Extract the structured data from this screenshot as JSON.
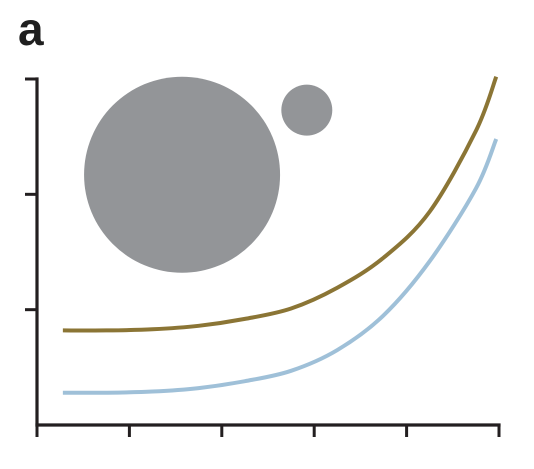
{
  "panel_label": "a",
  "chart_data": {
    "type": "line",
    "title": "",
    "xlabel": "",
    "ylabel": "",
    "xlim": [
      0,
      5
    ],
    "ylim": [
      0,
      3
    ],
    "x_ticks": [
      0,
      1,
      2,
      3,
      4,
      5
    ],
    "y_ticks": [
      0,
      1,
      2,
      3
    ],
    "tick_labels_shown": false,
    "grid": false,
    "legend": "none",
    "series": [
      {
        "color": "#8b7535",
        "x": [
          0.28,
          0.75,
          1.25,
          1.75,
          2.25,
          2.75,
          3.25,
          3.75,
          4.25,
          4.75,
          4.97
        ],
        "y": [
          0.82,
          0.82,
          0.83,
          0.86,
          0.92,
          1.01,
          1.19,
          1.45,
          1.85,
          2.55,
          3.02
        ]
      },
      {
        "color": "#9fc0d8",
        "x": [
          0.28,
          0.75,
          1.25,
          1.75,
          2.25,
          2.75,
          3.25,
          3.75,
          4.25,
          4.75,
          4.97
        ],
        "y": [
          0.28,
          0.28,
          0.29,
          0.32,
          0.38,
          0.47,
          0.65,
          0.95,
          1.42,
          2.05,
          2.48
        ]
      }
    ],
    "annotations": {
      "circles": [
        {
          "name": "large-circle",
          "cx": 1.57,
          "cy": 2.17,
          "r_rel": 1.0,
          "color": "#939598"
        },
        {
          "name": "small-circle",
          "cx": 2.92,
          "cy": 2.73,
          "r_rel": 0.26,
          "color": "#939598"
        }
      ]
    },
    "axis_color": "#231f20"
  }
}
